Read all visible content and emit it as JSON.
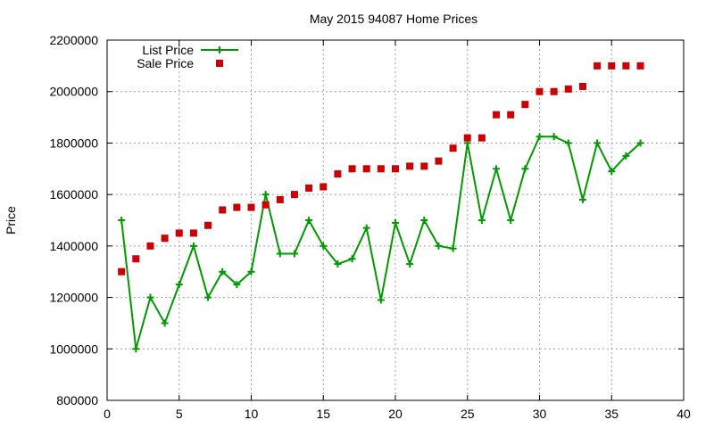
{
  "chart_data": {
    "type": "line",
    "title": "May 2015 94087 Home Prices",
    "xlabel": "",
    "ylabel": "Price",
    "xlim": [
      0,
      40
    ],
    "ylim": [
      800000,
      2200000
    ],
    "xticks": [
      0,
      5,
      10,
      15,
      20,
      25,
      30,
      35,
      40
    ],
    "yticks": [
      800000,
      1000000,
      1200000,
      1400000,
      1600000,
      1800000,
      2000000,
      2200000
    ],
    "grid": true,
    "legend_position": "top-left",
    "x": [
      1,
      2,
      3,
      4,
      5,
      6,
      7,
      8,
      9,
      10,
      11,
      12,
      13,
      14,
      15,
      16,
      17,
      18,
      19,
      20,
      21,
      22,
      23,
      24,
      25,
      26,
      27,
      28,
      29,
      30,
      31,
      32,
      33,
      34,
      35,
      36,
      37
    ],
    "series": [
      {
        "name": "List Price",
        "style": "linespoints",
        "color": "#009900",
        "values": [
          1500000,
          1000000,
          1200000,
          1100000,
          1250000,
          1400000,
          1200000,
          1300000,
          1250000,
          1300000,
          1600000,
          1370000,
          1370000,
          1500000,
          1400000,
          1330000,
          1350000,
          1470000,
          1190000,
          1490000,
          1330000,
          1500000,
          1400000,
          1390000,
          1800000,
          1500000,
          1700000,
          1500000,
          1700000,
          1825000,
          1825000,
          1800000,
          1580000,
          1800000,
          1690000,
          1750000,
          1800000
        ]
      },
      {
        "name": "Sale Price",
        "style": "points",
        "color": "#cc0000",
        "values": [
          1300000,
          1350000,
          1400000,
          1430000,
          1450000,
          1450000,
          1480000,
          1540000,
          1550000,
          1550000,
          1560000,
          1580000,
          1600000,
          1625000,
          1630000,
          1680000,
          1700000,
          1700000,
          1700000,
          1700000,
          1710000,
          1710000,
          1730000,
          1780000,
          1820000,
          1820000,
          1910000,
          1910000,
          1950000,
          2000000,
          2000000,
          2010000,
          2020000,
          2100000,
          2100000,
          2100000,
          2100000
        ]
      }
    ]
  }
}
